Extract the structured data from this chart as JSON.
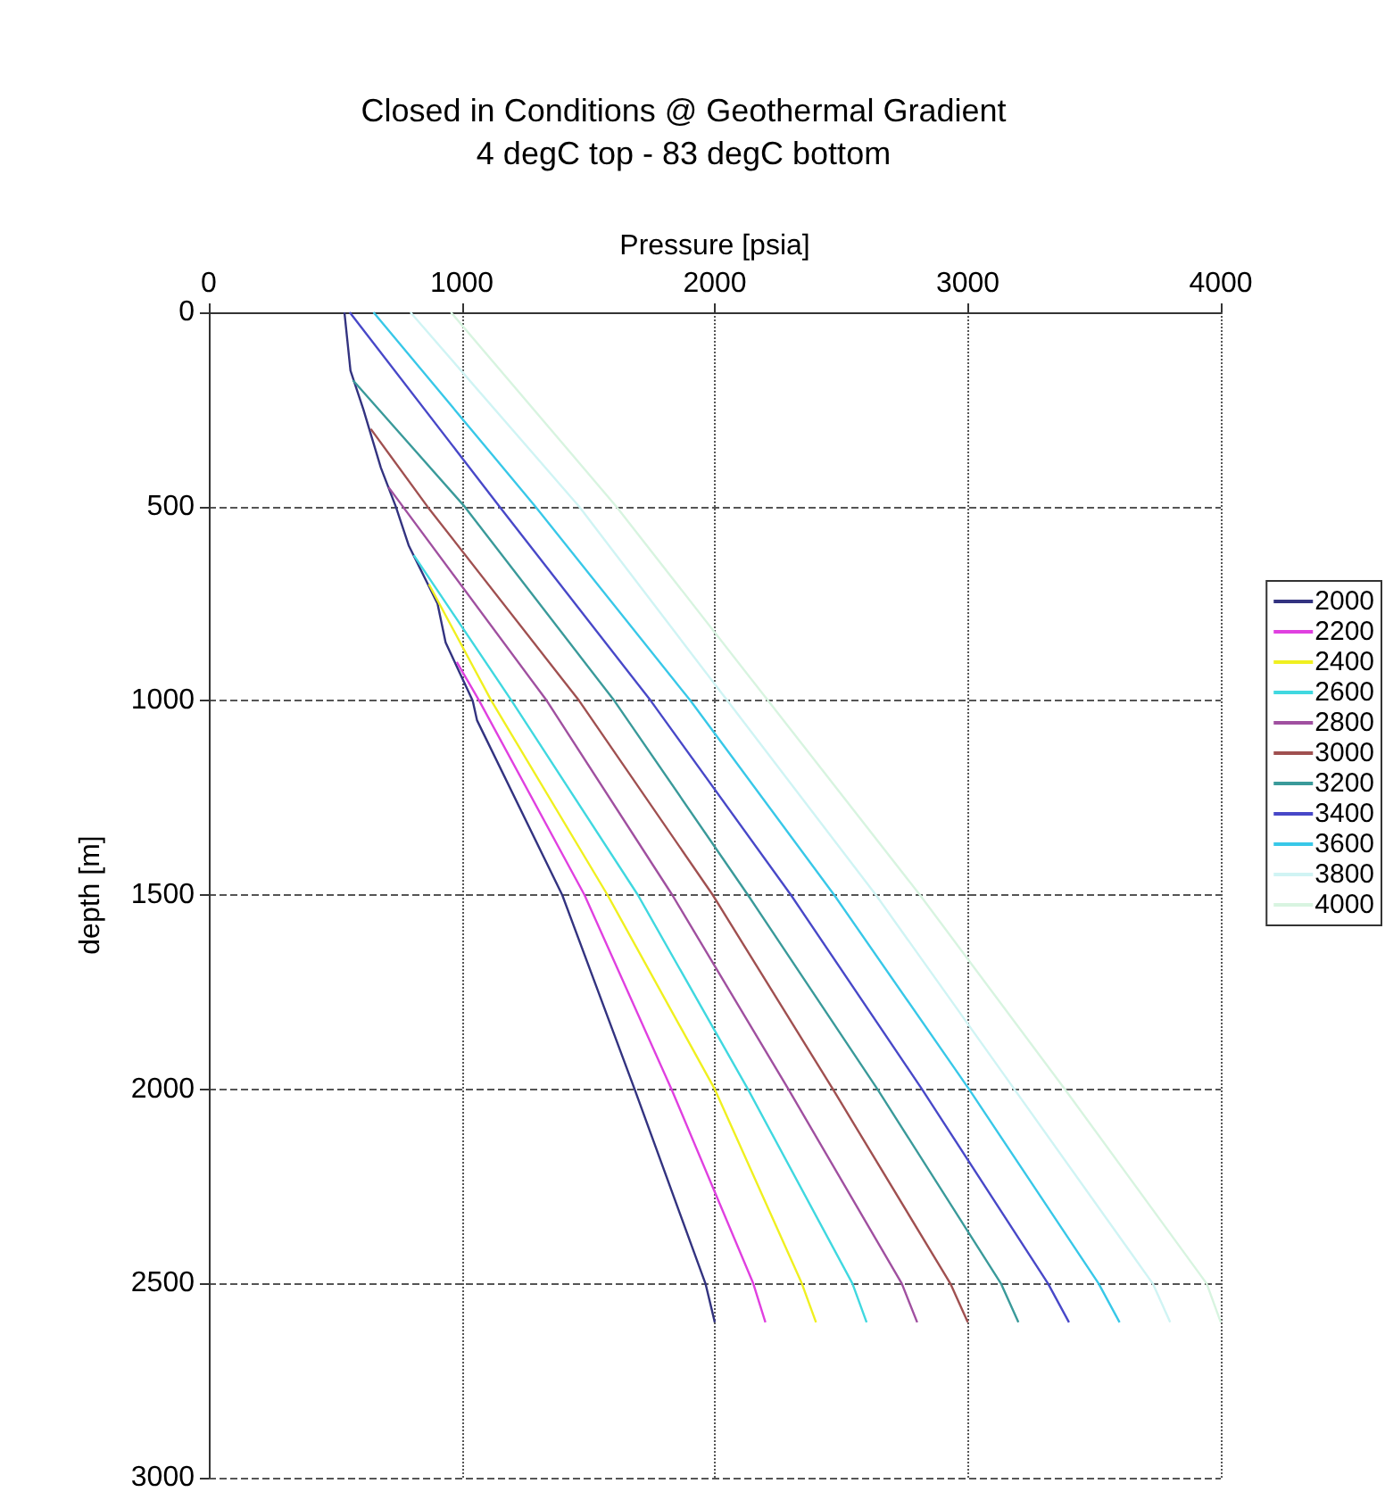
{
  "chart_data": {
    "type": "line",
    "title": "Closed in Conditions @ Geothermal Gradient",
    "subtitle": "4 degC top - 83 degC bottom",
    "xlabel": "Pressure [psia]",
    "ylabel": "depth [m]",
    "xlim": [
      0,
      4000
    ],
    "xticks": [
      0,
      1000,
      2000,
      3000,
      4000
    ],
    "ylim": [
      3000,
      0
    ],
    "yticks": [
      0,
      500,
      1000,
      1500,
      2000,
      2500,
      3000
    ],
    "grid": true,
    "legend": "right",
    "marker": "none",
    "line_style": "solid",
    "series": [
      {
        "name": "2000",
        "color": "#333380",
        "x": [
          536,
          560,
          611,
          680,
          739,
          790,
          904,
          936,
          1043,
          1060,
          1397,
          1683,
          1963,
          2000
        ],
        "values": [
          0,
          150,
          250,
          400,
          500,
          600,
          750,
          850,
          1000,
          1050,
          1500,
          2000,
          2500,
          2600
        ]
      },
      {
        "name": "2200",
        "color": "#e040e0",
        "x": [
          980,
          1069,
          1485,
          1829,
          2152,
          2200
        ],
        "values": [
          900,
          1000,
          1500,
          2000,
          2500,
          2600
        ]
      },
      {
        "name": "2400",
        "color": "#f0f020",
        "x": [
          870,
          1117,
          1576,
          2000,
          2344,
          2400
        ],
        "values": [
          700,
          1000,
          1500,
          2000,
          2500,
          2600
        ]
      },
      {
        "name": "2600",
        "color": "#40d8e0",
        "x": [
          810,
          1197,
          1696,
          2131,
          2544,
          2600
        ],
        "values": [
          625,
          1000,
          1500,
          2000,
          2500,
          2600
        ]
      },
      {
        "name": "2800",
        "color": "#a050a0",
        "x": [
          710,
          1336,
          1832,
          2291,
          2739,
          2800
        ],
        "values": [
          450,
          1000,
          1500,
          2000,
          2500,
          2600
        ]
      },
      {
        "name": "3000",
        "color": "#a05050",
        "x": [
          640,
          864,
          1464,
          1992,
          2467,
          2931,
          3000
        ],
        "values": [
          300,
          500,
          1000,
          1500,
          2000,
          2500,
          2600
        ]
      },
      {
        "name": "3200",
        "color": "#3a9a9a",
        "x": [
          570,
          1011,
          1603,
          2131,
          2643,
          3131,
          3200
        ],
        "values": [
          175,
          500,
          1000,
          1500,
          2000,
          2500,
          2600
        ]
      },
      {
        "name": "3400",
        "color": "#4848c8",
        "x": [
          557,
          1149,
          1747,
          2301,
          2819,
          3317,
          3400
        ],
        "values": [
          0,
          500,
          1000,
          1500,
          2000,
          2500,
          2600
        ]
      },
      {
        "name": "3600",
        "color": "#38c8e8",
        "x": [
          651,
          1291,
          1904,
          2472,
          3005,
          3517,
          3600
        ],
        "values": [
          0,
          500,
          1000,
          1500,
          2000,
          2500,
          2600
        ]
      },
      {
        "name": "3800",
        "color": "#d0f4f4",
        "x": [
          797,
          1464,
          2050,
          2637,
          3184,
          3731,
          3800
        ],
        "values": [
          0,
          500,
          1000,
          1500,
          2000,
          2500,
          2600
        ]
      },
      {
        "name": "4000",
        "color": "#d8f4e0",
        "x": [
          957,
          1611,
          2211,
          2811,
          3384,
          3944,
          4000
        ],
        "values": [
          0,
          500,
          1000,
          1500,
          2000,
          2500,
          2600
        ]
      }
    ]
  }
}
